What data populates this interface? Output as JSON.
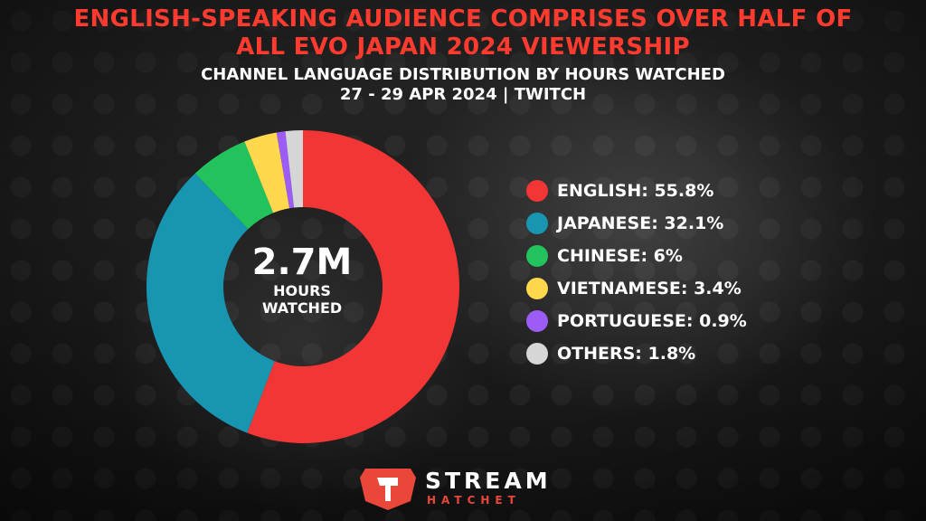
{
  "title_lines": [
    "ENGLISH-SPEAKING AUDIENCE COMPRISES OVER HALF OF",
    "ALL EVO JAPAN 2024 VIEWERSHIP"
  ],
  "subtitle_lines": [
    "CHANNEL LANGUAGE DISTRIBUTION BY HOURS WATCHED",
    "27 - 29 APR 2024 | TWITCH"
  ],
  "center": {
    "value": "2.7M",
    "label_lines": [
      "HOURS",
      "WATCHED"
    ]
  },
  "legend": [
    {
      "label": "ENGLISH: 55.8%",
      "color": "#f23535"
    },
    {
      "label": "JAPANESE: 32.1%",
      "color": "#1895b1"
    },
    {
      "label": "CHINESE: 6%",
      "color": "#22c25c"
    },
    {
      "label": "VIETNAMESE: 3.4%",
      "color": "#ffd84d"
    },
    {
      "label": "PORTUGUESE: 0.9%",
      "color": "#9d5cf5"
    },
    {
      "label": "OTHERS: 1.8%",
      "color": "#d6d6d6"
    }
  ],
  "brand": {
    "name": "STREAM",
    "sub": "HATCHET",
    "color": "#e8473a"
  },
  "chart_data": {
    "type": "pie",
    "style": "donut",
    "title": "ENGLISH-SPEAKING AUDIENCE COMPRISES OVER HALF OF ALL EVO JAPAN 2024 VIEWERSHIP",
    "subtitle": "CHANNEL LANGUAGE DISTRIBUTION BY HOURS WATCHED",
    "categories": [
      "ENGLISH",
      "JAPANESE",
      "CHINESE",
      "VIETNAMESE",
      "PORTUGUESE",
      "OTHERS"
    ],
    "values": [
      55.8,
      32.1,
      6,
      3.4,
      0.9,
      1.8
    ],
    "colors": [
      "#f23535",
      "#1895b1",
      "#22c25c",
      "#ffd84d",
      "#9d5cf5",
      "#d6d6d6"
    ],
    "center_total": "2.7M",
    "legend_position": "right"
  }
}
